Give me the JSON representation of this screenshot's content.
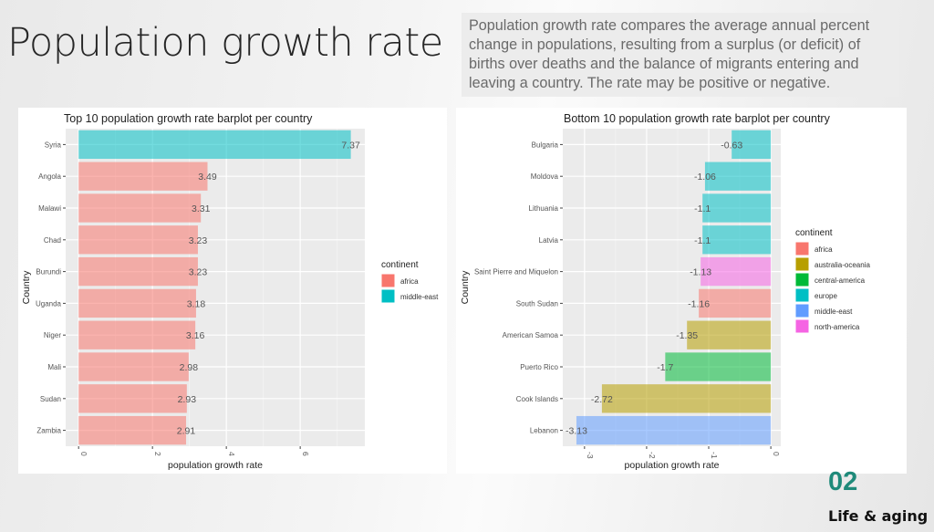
{
  "slide": {
    "title": "Population growth rate",
    "description": "Population growth rate compares the average annual percent change in populations, resulting from a surplus (or deficit) of births over deaths and the balance of migrants entering and leaving a country. The rate may be positive or negative.",
    "section_number": "02",
    "section_label": "Life & aging"
  },
  "chart_data": [
    {
      "type": "bar",
      "orientation": "horizontal",
      "title": "Top 10 population growth rate barplot per country",
      "xlabel": "population growth rate",
      "ylabel": "Country",
      "xlim": [
        0,
        7.5
      ],
      "xticks": [
        0,
        2,
        4,
        6
      ],
      "xtick_labels": [
        "0",
        "2",
        "4",
        "6"
      ],
      "grid": true,
      "legend": {
        "title": "continent",
        "placement": "right",
        "entries": [
          {
            "label": "africa",
            "color": "#F8766D"
          },
          {
            "label": "middle-east",
            "color": "#00BFC4"
          }
        ]
      },
      "categories": [
        "Syria",
        "Angola",
        "Malawi",
        "Chad",
        "Burundi",
        "Uganda",
        "Niger",
        "Mali",
        "Sudan",
        "Zambia"
      ],
      "values": [
        7.37,
        3.49,
        3.31,
        3.23,
        3.23,
        3.18,
        3.16,
        2.98,
        2.93,
        2.91
      ],
      "value_labels": [
        "7.37",
        "3.49",
        "3.31",
        "3.23",
        "3.23",
        "3.18",
        "3.16",
        "2.98",
        "2.93",
        "2.91"
      ],
      "groups": [
        "middle-east",
        "africa",
        "africa",
        "africa",
        "africa",
        "africa",
        "africa",
        "africa",
        "africa",
        "africa"
      ]
    },
    {
      "type": "bar",
      "orientation": "horizontal",
      "title": "Bottom 10 population growth rate barplot per country",
      "xlabel": "population growth rate",
      "ylabel": "Country",
      "xlim": [
        -3.13,
        0
      ],
      "xticks": [
        -3,
        -2,
        -1,
        0
      ],
      "xtick_labels": [
        "-3",
        "-2",
        "-1",
        "0"
      ],
      "grid": true,
      "legend": {
        "title": "continent",
        "placement": "right",
        "entries": [
          {
            "label": "africa",
            "color": "#F8766D"
          },
          {
            "label": "australia-oceania",
            "color": "#B79F00"
          },
          {
            "label": "central-america",
            "color": "#00BA38"
          },
          {
            "label": "europe",
            "color": "#00BFC4"
          },
          {
            "label": "middle-east",
            "color": "#619CFF"
          },
          {
            "label": "north-america",
            "color": "#F564E3"
          }
        ]
      },
      "categories": [
        "Bulgaria",
        "Moldova",
        "Lithuania",
        "Latvia",
        "Saint Pierre and Miquelon",
        "South Sudan",
        "American Samoa",
        "Puerto Rico",
        "Cook Islands",
        "Lebanon"
      ],
      "values": [
        -0.63,
        -1.06,
        -1.1,
        -1.1,
        -1.13,
        -1.16,
        -1.35,
        -1.7,
        -2.72,
        -3.13
      ],
      "value_labels": [
        "-0.63",
        "-1.06",
        "-1.1",
        "-1.1",
        "-1.13",
        "-1.16",
        "-1.35",
        "-1.7",
        "-2.72",
        "-3.13"
      ],
      "groups": [
        "europe",
        "europe",
        "europe",
        "europe",
        "north-america",
        "africa",
        "australia-oceania",
        "central-america",
        "australia-oceania",
        "middle-east"
      ]
    }
  ]
}
